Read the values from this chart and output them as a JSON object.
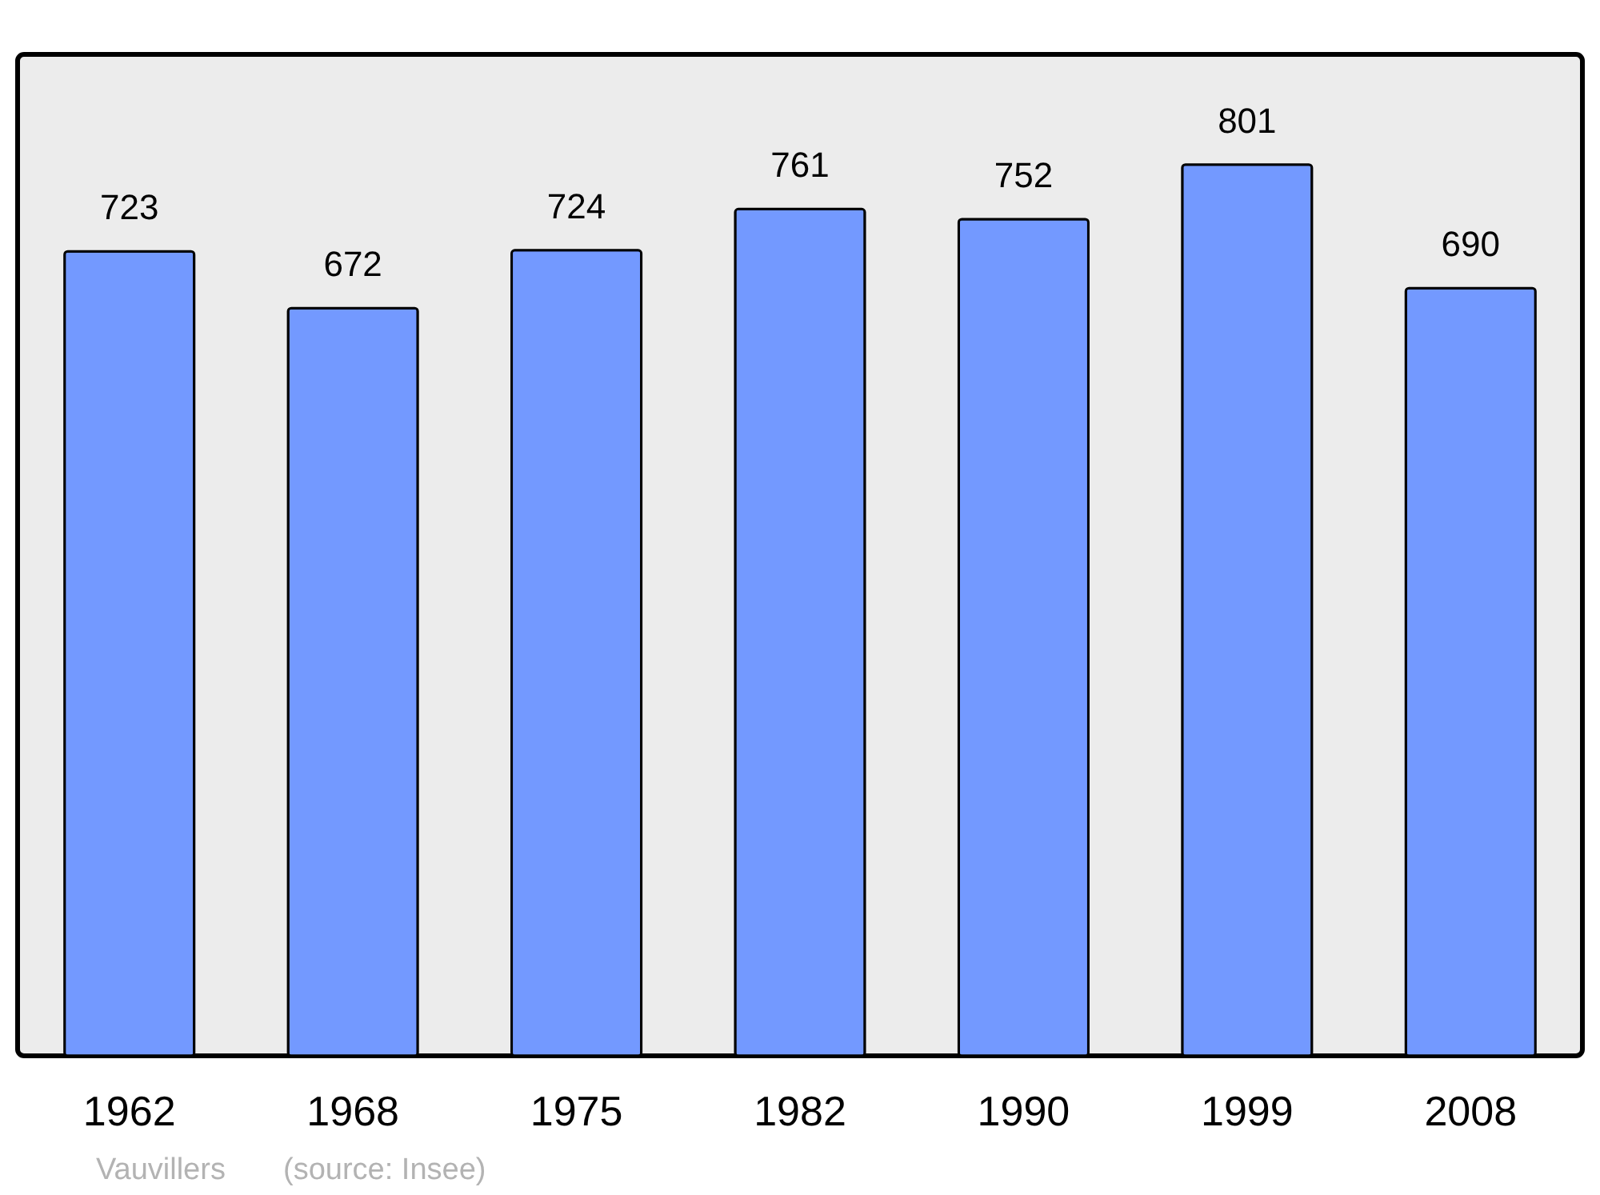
{
  "chart_data": {
    "type": "bar",
    "categories": [
      "1962",
      "1968",
      "1975",
      "1982",
      "1990",
      "1999",
      "2008"
    ],
    "values": [
      723,
      672,
      724,
      761,
      752,
      801,
      690
    ],
    "color": "#7399ff",
    "data_labels": true,
    "tick_labels": "x",
    "annotations": [
      "Vauvillers",
      "(source: Insee)"
    ]
  }
}
